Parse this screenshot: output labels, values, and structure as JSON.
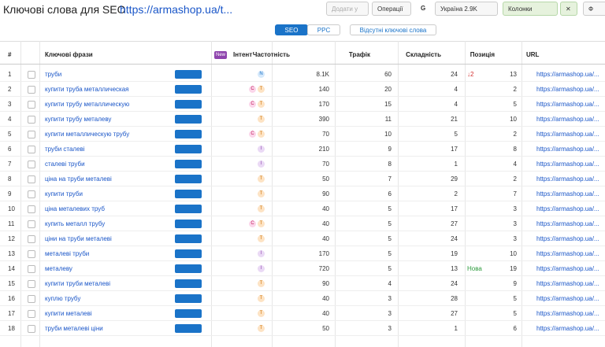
{
  "header": {
    "title": "Ключові слова для SEO",
    "url": "https://armashop.ua/t...",
    "add_button": "Додати у",
    "operations": "Операції",
    "google": "G",
    "country": "Україна 2.9K",
    "columns_button": "Колонки",
    "close": "✕",
    "filter": "Ф"
  },
  "tabs": [
    "SEO",
    "PPC",
    "Відсутні ключові слова"
  ],
  "table": {
    "columns": [
      "#",
      "Ключові фрази",
      "Інтент",
      "Частотність",
      "Трафік",
      "Складність",
      "Позиція",
      "URL"
    ],
    "new_badge": "New",
    "rows": [
      {
        "num": 1,
        "phrase": "труби",
        "intent": [
          "N"
        ],
        "volume": "8.1K",
        "traffic": 60,
        "difficulty": 24,
        "change": "↓2",
        "position": 13,
        "url": "https://armashop.ua/..."
      },
      {
        "num": 2,
        "phrase": "купити труба металлическая",
        "intent": [
          "C",
          "T"
        ],
        "volume": 140,
        "traffic": 20,
        "difficulty": 4,
        "position": 2,
        "url": "https://armashop.ua/..."
      },
      {
        "num": 3,
        "phrase": "купити трубу металлическую",
        "intent": [
          "C",
          "T"
        ],
        "volume": 170,
        "traffic": 15,
        "difficulty": 4,
        "position": 5,
        "url": "https://armashop.ua/..."
      },
      {
        "num": 4,
        "phrase": "купити трубу металеву",
        "intent": [
          "T"
        ],
        "volume": 390,
        "traffic": 11,
        "difficulty": 21,
        "position": 10,
        "url": "https://armashop.ua/..."
      },
      {
        "num": 5,
        "phrase": "купити металлическую трубу",
        "intent": [
          "C",
          "T"
        ],
        "volume": 70,
        "traffic": 10,
        "difficulty": 5,
        "position": 2,
        "url": "https://armashop.ua/..."
      },
      {
        "num": 6,
        "phrase": "труби сталеві",
        "intent": [
          "I"
        ],
        "volume": 210,
        "traffic": 9,
        "difficulty": 17,
        "position": 8,
        "url": "https://armashop.ua/..."
      },
      {
        "num": 7,
        "phrase": "сталеві труби",
        "intent": [
          "I"
        ],
        "volume": 70,
        "traffic": 8,
        "difficulty": 1,
        "position": 4,
        "url": "https://armashop.ua/..."
      },
      {
        "num": 8,
        "phrase": "ціна на труби металеві",
        "intent": [
          "T"
        ],
        "volume": 50,
        "traffic": 7,
        "difficulty": 29,
        "position": 2,
        "url": "https://armashop.ua/..."
      },
      {
        "num": 9,
        "phrase": "купити труби",
        "intent": [
          "T"
        ],
        "volume": 90,
        "traffic": 6,
        "difficulty": 2,
        "position": 7,
        "url": "https://armashop.ua/..."
      },
      {
        "num": 10,
        "phrase": "ціна металевих труб",
        "intent": [
          "T"
        ],
        "volume": 40,
        "traffic": 5,
        "difficulty": 17,
        "position": 3,
        "url": "https://armashop.ua/..."
      },
      {
        "num": 11,
        "phrase": "купить металл трубу",
        "intent": [
          "C",
          "T"
        ],
        "volume": 40,
        "traffic": 5,
        "difficulty": 27,
        "position": 3,
        "url": "https://armashop.ua/..."
      },
      {
        "num": 12,
        "phrase": "ціни на труби металеві",
        "intent": [
          "T"
        ],
        "volume": 40,
        "traffic": 5,
        "difficulty": 24,
        "position": 3,
        "url": "https://armashop.ua/..."
      },
      {
        "num": 13,
        "phrase": "металеві труби",
        "intent": [
          "I"
        ],
        "volume": 170,
        "traffic": 5,
        "difficulty": 19,
        "position": 10,
        "url": "https://armashop.ua/..."
      },
      {
        "num": 14,
        "phrase": "металеву",
        "intent": [
          "I"
        ],
        "volume": 720,
        "traffic": 5,
        "difficulty": 13,
        "change": "Нова",
        "position": 19,
        "url": "https://armashop.ua/..."
      },
      {
        "num": 15,
        "phrase": "купити труби металеві",
        "intent": [
          "T"
        ],
        "volume": 90,
        "traffic": 4,
        "difficulty": 24,
        "position": 9,
        "url": "https://armashop.ua/..."
      },
      {
        "num": 16,
        "phrase": "куплю трубу",
        "intent": [
          "T"
        ],
        "volume": 40,
        "traffic": 3,
        "difficulty": 28,
        "position": 5,
        "url": "https://armashop.ua/..."
      },
      {
        "num": 17,
        "phrase": "купити металеві",
        "intent": [
          "T"
        ],
        "volume": 40,
        "traffic": 3,
        "difficulty": 27,
        "position": 5,
        "url": "https://armashop.ua/..."
      },
      {
        "num": 18,
        "phrase": "труби металеві ціни",
        "intent": [
          "T"
        ],
        "volume": 50,
        "traffic": 3,
        "difficulty": 1,
        "position": 6,
        "url": "https://armashop.ua/..."
      }
    ]
  }
}
